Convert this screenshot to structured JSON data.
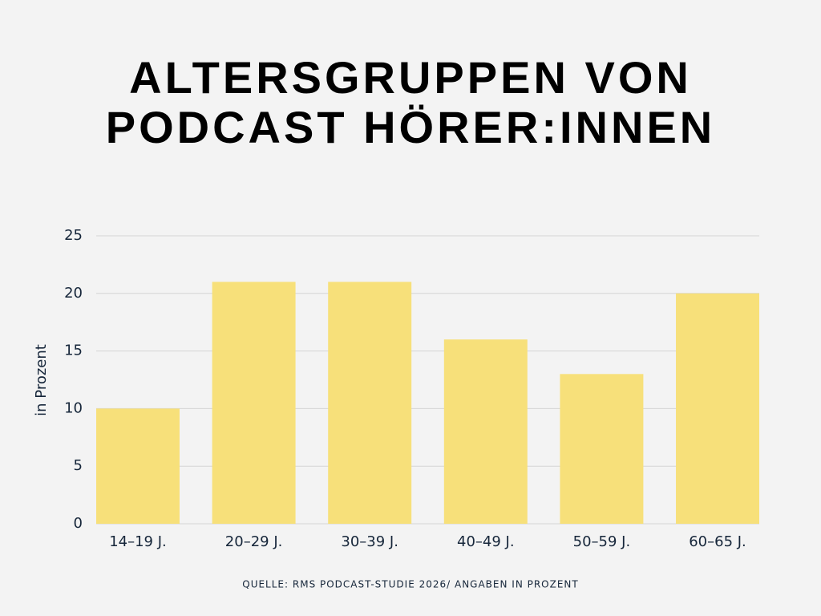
{
  "chart_data": {
    "type": "bar",
    "title": "ALTERSGRUPPEN VON PODCAST HÖRER:INNEN",
    "y_label": "in Prozent",
    "categories": [
      "14–19 J.",
      "20–29 J.",
      "30–39 J.",
      "40–49 J.",
      "50–59 J.",
      "60–65 J."
    ],
    "values": [
      10,
      21,
      21,
      16,
      13,
      20
    ],
    "color": "#f7e07a",
    "ylim": [
      0,
      25
    ],
    "yticks": [
      0,
      5,
      10,
      15,
      20,
      25
    ],
    "grid": true,
    "source": "QUELLE: RMS PODCAST-STUDIE 2026/ ANGABEN IN PROZENT"
  }
}
